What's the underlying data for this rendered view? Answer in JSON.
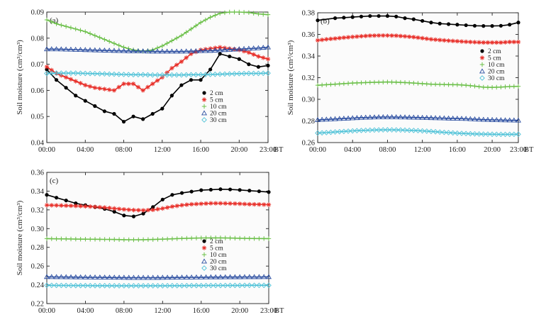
{
  "chart_data": [
    {
      "type": "line",
      "panel_label": "(a)",
      "ylabel": "Soil moisture (cm³/cm³)",
      "xlabel": "BT",
      "xticks": [
        "00:00",
        "04:00",
        "08:00",
        "12:00",
        "16:00",
        "20:00",
        "23:00"
      ],
      "ylim": [
        0.04,
        0.09
      ],
      "yticks": [
        "0.04",
        "0.05",
        "0.06",
        "0.07",
        "0.08",
        "0.09"
      ],
      "legend": [
        "2 cm",
        "5 cm",
        "10 cm",
        "20 cm",
        "30 cm"
      ],
      "series": [
        {
          "name": "2 cm",
          "color": "#000000",
          "marker": "dot",
          "x": [
            0,
            1,
            2,
            3,
            4,
            5,
            6,
            7,
            8,
            9,
            10,
            11,
            12,
            13,
            14,
            15,
            16,
            17,
            18,
            19,
            20,
            21,
            22,
            23
          ],
          "values": [
            0.068,
            0.064,
            0.061,
            0.058,
            0.056,
            0.054,
            0.052,
            0.051,
            0.048,
            0.05,
            0.049,
            0.051,
            0.053,
            0.058,
            0.062,
            0.064,
            0.064,
            0.068,
            0.074,
            0.073,
            0.072,
            0.07,
            0.069,
            0.0695
          ]
        },
        {
          "name": "5 cm",
          "color": "#e8302a",
          "marker": "asterisk",
          "x": [
            0,
            1,
            2,
            3,
            4,
            5,
            6,
            7,
            8,
            9,
            10,
            11,
            12,
            13,
            14,
            15,
            16,
            17,
            18,
            19,
            20,
            21,
            22,
            23
          ],
          "values": [
            0.069,
            0.0665,
            0.065,
            0.0635,
            0.062,
            0.061,
            0.0605,
            0.06,
            0.0625,
            0.0625,
            0.06,
            0.0625,
            0.065,
            0.0685,
            0.071,
            0.074,
            0.0755,
            0.076,
            0.0765,
            0.076,
            0.0755,
            0.0745,
            0.073,
            0.072
          ]
        },
        {
          "name": "10 cm",
          "color": "#6cc04a",
          "marker": "plus",
          "x": [
            0,
            1,
            2,
            3,
            4,
            5,
            6,
            7,
            8,
            9,
            10,
            11,
            12,
            13,
            14,
            15,
            16,
            17,
            18,
            19,
            20,
            21,
            22,
            23
          ],
          "values": [
            0.087,
            0.0855,
            0.0845,
            0.0835,
            0.0825,
            0.081,
            0.0795,
            0.078,
            0.0765,
            0.0755,
            0.075,
            0.0755,
            0.077,
            0.079,
            0.081,
            0.0835,
            0.086,
            0.088,
            0.0895,
            0.09,
            0.09,
            0.0898,
            0.0893,
            0.089
          ]
        },
        {
          "name": "20 cm",
          "color": "#2a4da0",
          "marker": "triangle",
          "x": [
            0,
            1,
            2,
            3,
            4,
            5,
            6,
            7,
            8,
            9,
            10,
            11,
            12,
            13,
            14,
            15,
            16,
            17,
            18,
            19,
            20,
            21,
            22,
            23
          ],
          "values": [
            0.0758,
            0.0758,
            0.0757,
            0.0756,
            0.0755,
            0.0754,
            0.0753,
            0.0752,
            0.0751,
            0.075,
            0.075,
            0.0749,
            0.0749,
            0.0749,
            0.0749,
            0.075,
            0.0751,
            0.0752,
            0.0754,
            0.0756,
            0.0758,
            0.076,
            0.0762,
            0.0765
          ]
        },
        {
          "name": "30 cm",
          "color": "#52c3d8",
          "marker": "diamond",
          "x": [
            0,
            1,
            2,
            3,
            4,
            5,
            6,
            7,
            8,
            9,
            10,
            11,
            12,
            13,
            14,
            15,
            16,
            17,
            18,
            19,
            20,
            21,
            22,
            23
          ],
          "values": [
            0.0665,
            0.0666,
            0.0666,
            0.0666,
            0.0665,
            0.0664,
            0.0663,
            0.0662,
            0.0661,
            0.066,
            0.066,
            0.0659,
            0.0659,
            0.0659,
            0.0659,
            0.066,
            0.066,
            0.0661,
            0.0662,
            0.0663,
            0.0664,
            0.0665,
            0.0665,
            0.0666
          ]
        }
      ]
    },
    {
      "type": "line",
      "panel_label": "(b)",
      "ylabel": "Soil moisture (cm³/cm³)",
      "xlabel": "BT",
      "xticks": [
        "00:00",
        "04:00",
        "08:00",
        "12:00",
        "16:00",
        "20:00",
        "23:00"
      ],
      "ylim": [
        0.26,
        0.38
      ],
      "yticks": [
        "0.26",
        "0.28",
        "0.30",
        "0.32",
        "0.34",
        "0.36",
        "0.38"
      ],
      "legend": [
        "2 cm",
        "5 cm",
        "10 cm",
        "20 cm",
        "30 cm"
      ],
      "series": [
        {
          "name": "2 cm",
          "color": "#000000",
          "marker": "dot",
          "x": [
            0,
            2,
            3,
            4,
            5,
            6,
            7,
            8,
            9,
            10,
            11,
            12,
            13,
            14,
            15,
            16,
            17,
            18,
            19,
            20,
            21,
            22,
            23
          ],
          "values": [
            0.373,
            0.375,
            0.3755,
            0.376,
            0.3765,
            0.377,
            0.377,
            0.377,
            0.3765,
            0.375,
            0.374,
            0.3725,
            0.371,
            0.37,
            0.3695,
            0.369,
            0.3685,
            0.368,
            0.3678,
            0.3678,
            0.368,
            0.369,
            0.371
          ]
        },
        {
          "name": "5 cm",
          "color": "#e8302a",
          "marker": "asterisk",
          "x": [
            0,
            1,
            2,
            3,
            4,
            5,
            6,
            7,
            8,
            9,
            10,
            11,
            12,
            13,
            14,
            15,
            16,
            17,
            18,
            19,
            20,
            21,
            22,
            23
          ],
          "values": [
            0.3545,
            0.3555,
            0.3562,
            0.357,
            0.3577,
            0.3583,
            0.3588,
            0.359,
            0.359,
            0.3588,
            0.3582,
            0.3575,
            0.3565,
            0.3555,
            0.3548,
            0.3542,
            0.3537,
            0.3532,
            0.3528,
            0.3525,
            0.3525,
            0.3525,
            0.353,
            0.353
          ]
        },
        {
          "name": "10 cm",
          "color": "#6cc04a",
          "marker": "plus",
          "x": [
            0,
            1,
            2,
            3,
            4,
            5,
            6,
            7,
            8,
            9,
            10,
            11,
            12,
            13,
            14,
            15,
            16,
            17,
            18,
            19,
            20,
            21,
            22,
            23
          ],
          "values": [
            0.313,
            0.3135,
            0.314,
            0.3145,
            0.315,
            0.3153,
            0.3156,
            0.3158,
            0.316,
            0.3158,
            0.3155,
            0.315,
            0.3145,
            0.314,
            0.3138,
            0.3136,
            0.3135,
            0.313,
            0.3122,
            0.3112,
            0.311,
            0.3113,
            0.3118,
            0.312
          ]
        },
        {
          "name": "20 cm",
          "color": "#2a4da0",
          "marker": "triangle",
          "x": [
            0,
            1,
            2,
            3,
            4,
            5,
            6,
            7,
            8,
            9,
            10,
            11,
            12,
            13,
            14,
            15,
            16,
            17,
            18,
            19,
            20,
            21,
            22,
            23
          ],
          "values": [
            0.281,
            0.2814,
            0.2818,
            0.2822,
            0.2826,
            0.283,
            0.2833,
            0.2835,
            0.2836,
            0.2835,
            0.2834,
            0.2832,
            0.283,
            0.2828,
            0.2826,
            0.2824,
            0.2822,
            0.282,
            0.2816,
            0.2812,
            0.281,
            0.2808,
            0.2806,
            0.2805
          ]
        },
        {
          "name": "30 cm",
          "color": "#52c3d8",
          "marker": "diamond",
          "x": [
            0,
            1,
            2,
            3,
            4,
            5,
            6,
            7,
            8,
            9,
            10,
            11,
            12,
            13,
            14,
            15,
            16,
            17,
            18,
            19,
            20,
            21,
            22,
            23
          ],
          "values": [
            0.2688,
            0.2692,
            0.2698,
            0.2703,
            0.2708,
            0.2712,
            0.2715,
            0.2717,
            0.2718,
            0.2717,
            0.2715,
            0.2712,
            0.2708,
            0.2703,
            0.2697,
            0.2692,
            0.2687,
            0.2683,
            0.268,
            0.2678,
            0.2677,
            0.2676,
            0.2676,
            0.2677
          ]
        }
      ]
    },
    {
      "type": "line",
      "panel_label": "(c)",
      "ylabel": "Soil moisture (cm³/cm³)",
      "xlabel": "BT",
      "xticks": [
        "00:00",
        "04:00",
        "08:00",
        "12:00",
        "16:00",
        "20:00",
        "23:00"
      ],
      "ylim": [
        0.22,
        0.36
      ],
      "yticks": [
        "0.22",
        "0.24",
        "0.26",
        "0.28",
        "0.30",
        "0.32",
        "0.34",
        "0.36"
      ],
      "legend": [
        "2 cm",
        "5 cm",
        "10 cm",
        "20 cm",
        "30 cm"
      ],
      "series": [
        {
          "name": "2 cm",
          "color": "#000000",
          "marker": "dot",
          "x": [
            0,
            1,
            2,
            3,
            4,
            5,
            6,
            7,
            8,
            9,
            10,
            11,
            12,
            13,
            14,
            15,
            16,
            17,
            18,
            19,
            20,
            21,
            22,
            23
          ],
          "values": [
            0.336,
            0.333,
            0.33,
            0.327,
            0.325,
            0.323,
            0.321,
            0.318,
            0.314,
            0.313,
            0.316,
            0.323,
            0.331,
            0.336,
            0.338,
            0.3395,
            0.341,
            0.3415,
            0.342,
            0.3418,
            0.3412,
            0.3405,
            0.3398,
            0.339
          ]
        },
        {
          "name": "5 cm",
          "color": "#e8302a",
          "marker": "asterisk",
          "x": [
            0,
            1,
            2,
            3,
            4,
            5,
            6,
            7,
            8,
            9,
            10,
            11,
            12,
            13,
            14,
            15,
            16,
            17,
            18,
            19,
            20,
            21,
            22,
            23
          ],
          "values": [
            0.325,
            0.3248,
            0.3245,
            0.3242,
            0.3238,
            0.3232,
            0.3225,
            0.3215,
            0.3205,
            0.3198,
            0.3195,
            0.32,
            0.3215,
            0.3235,
            0.325,
            0.326,
            0.3265,
            0.327,
            0.327,
            0.3268,
            0.3265,
            0.326,
            0.3258,
            0.3255
          ]
        },
        {
          "name": "10 cm",
          "color": "#6cc04a",
          "marker": "plus",
          "x": [
            0,
            1,
            2,
            3,
            4,
            5,
            6,
            7,
            8,
            9,
            10,
            11,
            12,
            13,
            14,
            15,
            16,
            17,
            18,
            19,
            20,
            21,
            22,
            23
          ],
          "values": [
            0.2893,
            0.2891,
            0.289,
            0.2888,
            0.2887,
            0.2886,
            0.2885,
            0.2884,
            0.2882,
            0.2881,
            0.2882,
            0.2884,
            0.2887,
            0.2891,
            0.2895,
            0.2898,
            0.29,
            0.2901,
            0.2901,
            0.2899,
            0.2897,
            0.2895,
            0.2894,
            0.2893
          ]
        },
        {
          "name": "20 cm",
          "color": "#2a4da0",
          "marker": "triangle",
          "x": [
            0,
            1,
            2,
            3,
            4,
            5,
            6,
            7,
            8,
            9,
            10,
            11,
            12,
            13,
            14,
            15,
            16,
            17,
            18,
            19,
            20,
            21,
            22,
            23
          ],
          "values": [
            0.2485,
            0.2484,
            0.2483,
            0.2482,
            0.2481,
            0.248,
            0.2479,
            0.2478,
            0.2477,
            0.2476,
            0.2476,
            0.2476,
            0.2477,
            0.2478,
            0.2479,
            0.248,
            0.2481,
            0.2482,
            0.2482,
            0.2483,
            0.2483,
            0.2484,
            0.2484,
            0.2485
          ]
        },
        {
          "name": "30 cm",
          "color": "#52c3d8",
          "marker": "diamond",
          "x": [
            0,
            1,
            2,
            3,
            4,
            5,
            6,
            7,
            8,
            9,
            10,
            11,
            12,
            13,
            14,
            15,
            16,
            17,
            18,
            19,
            20,
            21,
            22,
            23
          ],
          "values": [
            0.2395,
            0.2394,
            0.2393,
            0.2392,
            0.2392,
            0.2391,
            0.2391,
            0.239,
            0.239,
            0.239,
            0.239,
            0.239,
            0.239,
            0.2391,
            0.2391,
            0.2392,
            0.2392,
            0.2393,
            0.2393,
            0.2394,
            0.2394,
            0.2395,
            0.2395,
            0.2395
          ]
        }
      ]
    }
  ]
}
